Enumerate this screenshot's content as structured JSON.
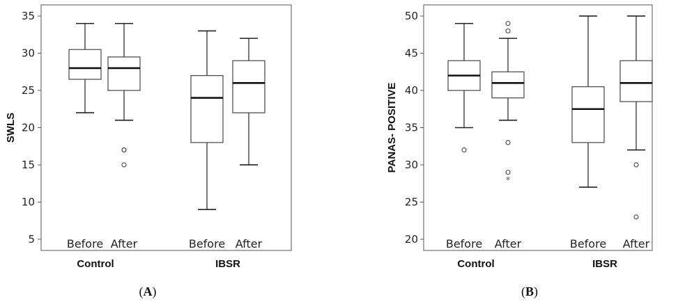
{
  "chart_data": [
    {
      "type": "boxplot",
      "panel_label": "A",
      "ylabel": "SWLS",
      "ylim": [
        3.5,
        36.5
      ],
      "yticks": [
        5,
        10,
        15,
        20,
        25,
        30,
        35
      ],
      "group_labels": [
        "Control",
        "IBSR"
      ],
      "boxes": [
        {
          "group": "Control",
          "label": "Before",
          "whisker_low": 22,
          "q1": 26.5,
          "median": 28,
          "q3": 30.5,
          "whisker_high": 34,
          "outliers": [],
          "extremes": []
        },
        {
          "group": "Control",
          "label": "After",
          "whisker_low": 21,
          "q1": 25,
          "median": 28,
          "q3": 29.5,
          "whisker_high": 34,
          "outliers": [
            17,
            17,
            15
          ],
          "extremes": []
        },
        {
          "group": "IBSR",
          "label": "Before",
          "whisker_low": 9,
          "q1": 18,
          "median": 24,
          "q3": 27,
          "whisker_high": 33,
          "outliers": [],
          "extremes": []
        },
        {
          "group": "IBSR",
          "label": "After",
          "whisker_low": 15,
          "q1": 22,
          "median": 26,
          "q3": 29,
          "whisker_high": 32,
          "outliers": [],
          "extremes": []
        }
      ]
    },
    {
      "type": "boxplot",
      "panel_label": "B",
      "ylabel": "PANAS- POSITIVE",
      "ylim": [
        18.5,
        51.5
      ],
      "yticks": [
        20,
        25,
        30,
        35,
        40,
        45,
        50
      ],
      "group_labels": [
        "Control",
        "IBSR"
      ],
      "boxes": [
        {
          "group": "Control",
          "label": "Before",
          "whisker_low": 35,
          "q1": 40,
          "median": 42,
          "q3": 44,
          "whisker_high": 49,
          "outliers": [
            32
          ],
          "extremes": []
        },
        {
          "group": "Control",
          "label": "After",
          "whisker_low": 36,
          "q1": 39,
          "median": 41,
          "q3": 42.5,
          "whisker_high": 47,
          "outliers": [
            49,
            48,
            33,
            29
          ],
          "extremes": [
            28
          ]
        },
        {
          "group": "IBSR",
          "label": "Before",
          "whisker_low": 27,
          "q1": 33,
          "median": 37.5,
          "q3": 40.5,
          "whisker_high": 50,
          "outliers": [],
          "extremes": []
        },
        {
          "group": "IBSR",
          "label": "After",
          "whisker_low": 32,
          "q1": 38.5,
          "median": 41,
          "q3": 44,
          "whisker_high": 50,
          "outliers": [
            30,
            23
          ],
          "extremes": []
        }
      ]
    }
  ]
}
